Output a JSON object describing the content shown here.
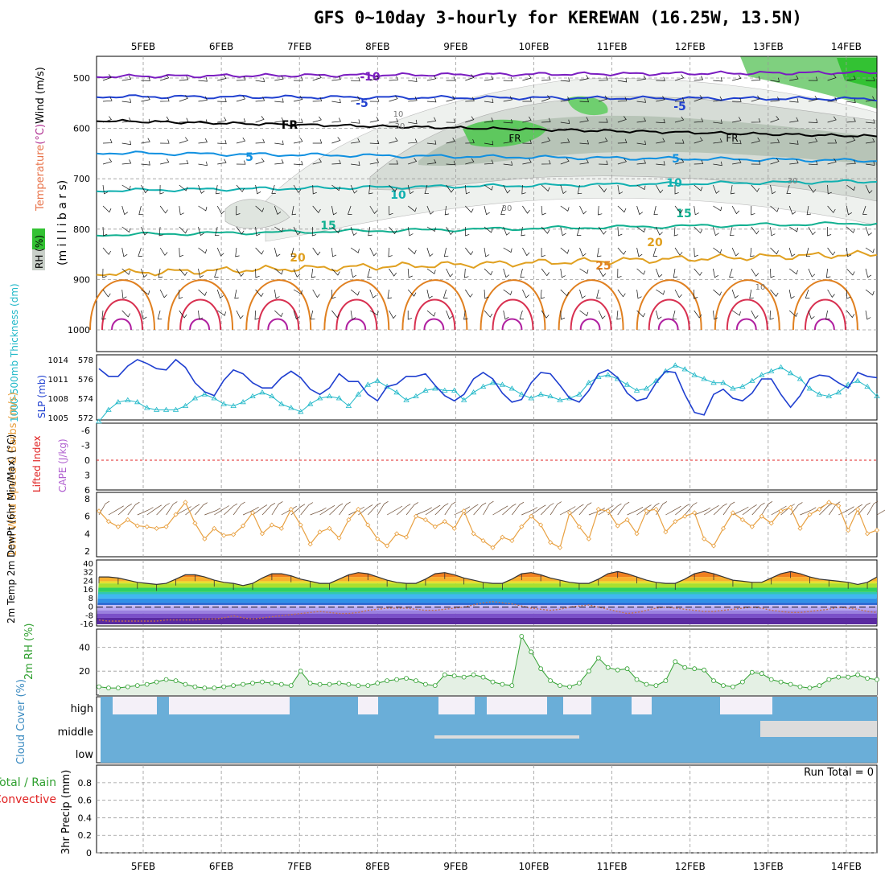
{
  "title": "GFS 0~10day 3-hourly for KEREWAN (16.25W, 13.5N)",
  "chart_data": {
    "type": "meteogram",
    "dates": [
      "5FEB",
      "6FEB",
      "7FEB",
      "8FEB",
      "9FEB",
      "10FEB",
      "11FEB",
      "12FEB",
      "13FEB",
      "14FEB"
    ],
    "panels": {
      "upper": {
        "ylabel": "(m i l l i b a r s)",
        "legend_parts": [
          {
            "text": "Temperature",
            "color": "#e8734a"
          },
          {
            "text": "(°C)",
            "color": "#b03090"
          },
          {
            "text": "Wind (m/s)",
            "color": "#000000"
          }
        ],
        "rh_label": "RH (%)",
        "yticks": [
          "500",
          "600",
          "700",
          "800",
          "900",
          "1000"
        ],
        "isotherm_labels": [
          {
            "text": "-10",
            "color": "#7a1cc0"
          },
          {
            "text": "-5",
            "color": "#2040d0"
          },
          {
            "text": "FR",
            "color": "#000000"
          },
          {
            "text": "5",
            "color": "#1090e0"
          },
          {
            "text": "10",
            "color": "#10b0b0"
          },
          {
            "text": "15",
            "color": "#10b090"
          },
          {
            "text": "20",
            "color": "#e0a020"
          },
          {
            "text": "25",
            "color": "#e08020"
          }
        ],
        "rh_contour_labels": [
          "10",
          "30"
        ]
      },
      "thickness_slp": {
        "ylabel_left": "1000-500mb Thickness (dm)",
        "ylabel_right": "SLP (mb)",
        "thickness_ticks": [
          "578",
          "576",
          "574",
          "572"
        ],
        "slp_ticks": [
          "1014",
          "1011",
          "1008",
          "1005"
        ],
        "thickness_dm": [
          571.6,
          572.8,
          573.6,
          573.8,
          573.6,
          573.0,
          572.8,
          572.8,
          572.8,
          573.2,
          574.0,
          574.4,
          574.0,
          573.4,
          573.2,
          573.6,
          574.2,
          574.6,
          574.2,
          573.4,
          573.0,
          572.6,
          573.4,
          574.0,
          574.2,
          574.0,
          573.2,
          574.4,
          575.4,
          575.8,
          575.2,
          574.6,
          573.8,
          574.2,
          574.8,
          575.0,
          574.8,
          574.8,
          573.8,
          574.6,
          575.2,
          575.6,
          575.4,
          575.0,
          574.4,
          574.0,
          574.4,
          574.2,
          573.8,
          574.0,
          574.4,
          575.6,
          576.2,
          576.4,
          576.0,
          575.4,
          574.8,
          575.0,
          575.8,
          576.8,
          577.4,
          577.0,
          576.4,
          576.0,
          575.6,
          575.6,
          575.0,
          575.2,
          575.8,
          576.4,
          576.8,
          577.2,
          576.6,
          576.0,
          575.0,
          574.4,
          574.2,
          574.6,
          575.4,
          575.8,
          575.2,
          574.2
        ],
        "slp_mb": [
          1012.6,
          1011.4,
          1011.4,
          1013.0,
          1014.0,
          1013.4,
          1012.6,
          1012.4,
          1014.0,
          1012.8,
          1010.4,
          1009.0,
          1008.4,
          1010.8,
          1012.4,
          1011.8,
          1010.4,
          1009.6,
          1009.6,
          1011.2,
          1012.2,
          1011.2,
          1009.4,
          1008.6,
          1009.6,
          1011.8,
          1010.6,
          1010.6,
          1008.6,
          1007.6,
          1009.8,
          1010.2,
          1011.4,
          1011.4,
          1011.8,
          1010.0,
          1008.4,
          1007.6,
          1008.6,
          1011.0,
          1012.0,
          1011.0,
          1008.8,
          1007.4,
          1007.8,
          1010.4,
          1012.0,
          1011.8,
          1010.0,
          1008.0,
          1007.4,
          1009.2,
          1011.8,
          1012.4,
          1011.2,
          1008.8,
          1007.6,
          1008.0,
          1010.4,
          1012.2,
          1012.0,
          1008.6,
          1005.8,
          1005.4,
          1008.6,
          1009.4,
          1008.0,
          1007.6,
          1008.8,
          1011.0,
          1011.0,
          1008.6,
          1006.6,
          1008.4,
          1011.0,
          1011.6,
          1011.4,
          1010.4,
          1009.6,
          1012.0,
          1011.4,
          1011.2
        ]
      },
      "cape_li": {
        "ylabel_left": "Lifted Index",
        "ylabel_right": "CAPE (J/kg)",
        "yticks": [
          "-6",
          "-3",
          "0",
          "3",
          "6"
        ]
      },
      "wind10m": {
        "ylabel": "10m Wind Speed & Barbs (m/s)",
        "yticks": [
          "8",
          "6",
          "4",
          "2"
        ],
        "speed_ms": [
          6.6,
          5.4,
          4.8,
          5.6,
          4.9,
          4.8,
          4.6,
          4.8,
          6.2,
          7.6,
          5.2,
          3.4,
          4.6,
          3.8,
          3.9,
          4.9,
          6.4,
          4.0,
          5.0,
          4.6,
          6.8,
          5.0,
          2.8,
          4.2,
          4.6,
          3.5,
          5.6,
          6.8,
          5.0,
          3.4,
          2.6,
          4.0,
          3.6,
          6.0,
          5.6,
          4.8,
          5.4,
          4.6,
          6.6,
          4.0,
          3.2,
          2.4,
          3.6,
          3.2,
          4.8,
          6.0,
          5.0,
          3.0,
          2.4,
          6.4,
          4.8,
          3.4,
          6.8,
          6.6,
          4.9,
          5.6,
          4.0,
          6.6,
          6.8,
          4.2,
          5.4,
          6.0,
          6.4,
          3.4,
          2.6,
          4.6,
          6.4,
          5.6,
          4.8,
          6.0,
          5.2,
          6.6,
          7.0,
          4.6,
          6.2,
          6.8,
          7.6,
          7.2,
          4.4,
          6.8,
          4.0,
          4.4
        ]
      },
      "temp2m": {
        "ylabel": "2m Temp 2m DewPt (6hr Min/Max) (°C)",
        "yticks": [
          "40",
          "32",
          "24",
          "16",
          "8",
          "0",
          "-8",
          "-16"
        ],
        "temp_c": [
          28,
          28,
          27,
          25,
          23,
          22,
          21,
          22,
          26,
          30,
          30,
          28,
          25,
          23,
          22,
          20,
          22,
          27,
          31,
          31,
          29,
          26,
          24,
          22,
          22,
          26,
          30,
          32,
          31,
          28,
          25,
          23,
          22,
          22,
          26,
          31,
          32,
          30,
          27,
          25,
          23,
          22,
          22,
          26,
          31,
          32,
          30,
          27,
          25,
          23,
          22,
          22,
          26,
          31,
          33,
          31,
          28,
          25,
          23,
          22,
          22,
          26,
          31,
          33,
          31,
          28,
          25,
          24,
          23,
          23,
          27,
          31,
          33,
          31,
          28,
          26,
          25,
          24,
          23,
          21,
          23,
          28
        ],
        "dewpoint_c": [
          -12,
          -13,
          -13,
          -13,
          -13,
          -13,
          -13,
          -12,
          -12,
          -12,
          -12,
          -11,
          -11,
          -10,
          -8,
          -10,
          -11,
          -10,
          -9,
          -8,
          -7,
          -6,
          -5,
          -4,
          -5,
          -6,
          -6,
          -5,
          -3,
          -2,
          -1,
          -1,
          -1,
          -2,
          -3,
          -3,
          -2,
          -1,
          0,
          2,
          4,
          5,
          4,
          3,
          1,
          -1,
          -2,
          -3,
          -2,
          0,
          1,
          2,
          0,
          -2,
          -4,
          -6,
          -5,
          -3,
          -1,
          0,
          -1,
          -2,
          -3,
          -4,
          -4,
          -3,
          -2,
          -1,
          0,
          -1,
          -3,
          -4,
          -5,
          -5,
          -4,
          -3,
          -2,
          0,
          -1,
          -2,
          -4,
          -5
        ]
      },
      "rh2m": {
        "ylabel": "2m RH (%)",
        "yticks": [
          "40",
          "20"
        ],
        "rh_percent": [
          7,
          6,
          6,
          7,
          8,
          9,
          11,
          13,
          12,
          9,
          7,
          6,
          6,
          7,
          8,
          9,
          10,
          11,
          10,
          9,
          8,
          20,
          10,
          9,
          9,
          10,
          9,
          8,
          8,
          10,
          12,
          13,
          14,
          12,
          9,
          8,
          17,
          16,
          15,
          17,
          15,
          11,
          9,
          8,
          49,
          36,
          22,
          12,
          8,
          7,
          10,
          20,
          31,
          23,
          21,
          22,
          13,
          9,
          8,
          12,
          28,
          23,
          22,
          21,
          12,
          8,
          7,
          11,
          19,
          18,
          13,
          11,
          9,
          7,
          6,
          8,
          13,
          15,
          15,
          17,
          14,
          13
        ]
      },
      "cloud": {
        "ylabel": "Cloud Cover (%)",
        "levels": [
          "high",
          "middle",
          "low"
        ]
      },
      "precip": {
        "ylabel": "3hr Precip (mm)",
        "legend_left": "Total / Rain",
        "legend_left2": "Convective",
        "yticks": [
          "0.8",
          "0.6",
          "0.4",
          "0.2",
          "0"
        ],
        "run_total_label": "Run Total = 0",
        "values_mm": []
      }
    }
  }
}
